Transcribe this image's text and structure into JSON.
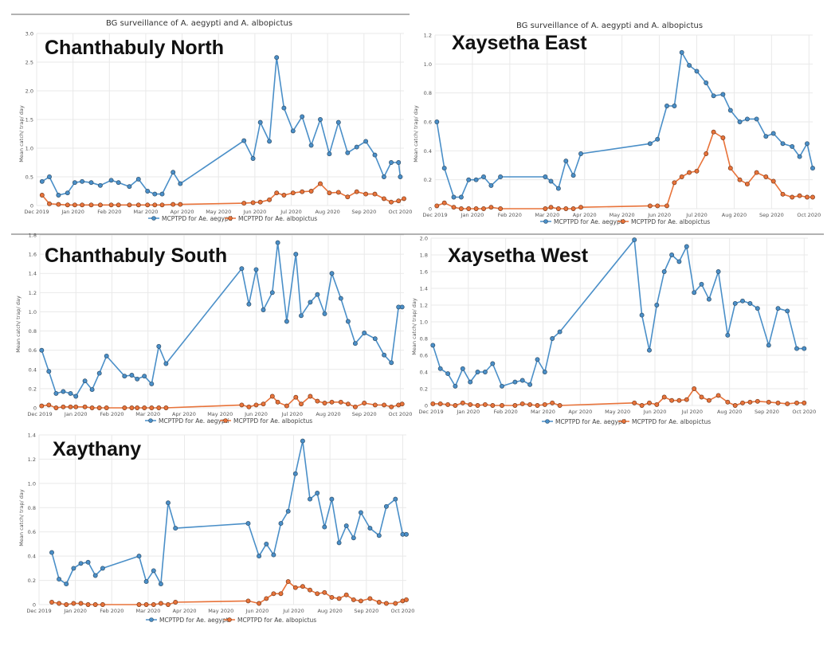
{
  "colors": {
    "aegypti": "#4a8fc8",
    "albopictus": "#e8733a",
    "grid": "#e9e9e9"
  },
  "legend": [
    "MCPTPD for Ae. aegypti",
    "MCPTPD for Ae. albopictus"
  ],
  "chart_data": [
    {
      "type": "line",
      "region": "Chanthabuly North",
      "title": "BG surveillance of A. aegypti and A. albopictus",
      "ylabel": "Mean catch/ trap/ day",
      "ylim": [
        0,
        3.0
      ],
      "yticks": [
        0,
        0.5,
        1.0,
        1.5,
        2.0,
        2.5,
        3.0
      ],
      "yticklabels": [
        "0",
        "0.5",
        "1.0",
        "1.5",
        "2.0",
        "2.5",
        "3.0"
      ],
      "xlim": [
        0,
        10.1
      ],
      "xticklabels": [
        "Dec 2019",
        "Jan 2020",
        "Feb 2020",
        "Mar 2020",
        "Apr 2020",
        "May 2020",
        "Jun 2020",
        "Jul 2020",
        "Aug 2020",
        "Sep 2020",
        "Oct 2020"
      ],
      "grid": true,
      "legend_position": "bottom",
      "series": [
        {
          "name": "MCPTPD for Ae. aegypti",
          "x": [
            0.15,
            0.35,
            0.6,
            0.85,
            1.05,
            1.25,
            1.5,
            1.75,
            2.05,
            2.25,
            2.55,
            2.8,
            3.05,
            3.25,
            3.45,
            3.75,
            3.95,
            5.7,
            5.95,
            6.15,
            6.4,
            6.6,
            6.8,
            7.05,
            7.3,
            7.55,
            7.8,
            8.05,
            8.3,
            8.55,
            8.8,
            9.05,
            9.3,
            9.55,
            9.75,
            9.95,
            10.0
          ],
          "y": [
            0.42,
            0.5,
            0.18,
            0.22,
            0.4,
            0.42,
            0.4,
            0.35,
            0.44,
            0.4,
            0.33,
            0.46,
            0.25,
            0.2,
            0.2,
            0.58,
            0.38,
            1.13,
            0.82,
            1.45,
            1.12,
            2.58,
            1.7,
            1.3,
            1.55,
            1.05,
            1.5,
            0.9,
            1.45,
            0.92,
            1.02,
            1.12,
            0.88,
            0.5,
            0.75,
            0.75,
            0.5
          ]
        },
        {
          "name": "MCPTPD for Ae. albopictus",
          "x": [
            0.15,
            0.35,
            0.6,
            0.85,
            1.05,
            1.25,
            1.5,
            1.75,
            2.05,
            2.25,
            2.55,
            2.8,
            3.05,
            3.25,
            3.45,
            3.75,
            3.95,
            5.7,
            5.95,
            6.15,
            6.4,
            6.6,
            6.8,
            7.05,
            7.3,
            7.55,
            7.8,
            8.05,
            8.3,
            8.55,
            8.8,
            9.05,
            9.3,
            9.55,
            9.75,
            9.95,
            10.1
          ],
          "y": [
            0.18,
            0.03,
            0.02,
            0.01,
            0.01,
            0.01,
            0.01,
            0.01,
            0.01,
            0.01,
            0.01,
            0.01,
            0.01,
            0.01,
            0.01,
            0.02,
            0.02,
            0.04,
            0.05,
            0.06,
            0.1,
            0.22,
            0.18,
            0.22,
            0.24,
            0.25,
            0.38,
            0.22,
            0.23,
            0.15,
            0.24,
            0.2,
            0.2,
            0.12,
            0.06,
            0.08,
            0.12
          ]
        }
      ]
    },
    {
      "type": "line",
      "region": "Xaysetha East",
      "title": "BG surveillance of A. aegypti and A. albopictus",
      "ylabel": "Mean catch/ trap/ day",
      "ylim": [
        0,
        1.2
      ],
      "yticks": [
        0,
        0.2,
        0.4,
        0.6,
        0.8,
        1.0,
        1.2
      ],
      "yticklabels": [
        "0",
        "0.2",
        "0.4",
        "0.6",
        "0.8",
        "1.0",
        "1.2"
      ],
      "xlim": [
        0,
        10.1
      ],
      "xticklabels": [
        "Dec 2019",
        "Jan 2020",
        "Feb 2020",
        "Mar 2020",
        "Apr 2020",
        "May 2020",
        "Jun 2020",
        "Jul 2020",
        "Aug 2020",
        "Sep 2020",
        "Oct 2020"
      ],
      "grid": true,
      "legend_position": "bottom",
      "series": [
        {
          "name": "MCPTPD for Ae. aegypti",
          "x": [
            0.05,
            0.25,
            0.5,
            0.7,
            0.9,
            1.1,
            1.3,
            1.5,
            1.75,
            2.95,
            3.1,
            3.3,
            3.5,
            3.7,
            3.9,
            5.75,
            5.95,
            6.2,
            6.4,
            6.6,
            6.8,
            7.0,
            7.25,
            7.45,
            7.7,
            7.9,
            8.15,
            8.35,
            8.6,
            8.85,
            9.05,
            9.3,
            9.55,
            9.75,
            9.95,
            10.1
          ],
          "y": [
            0.6,
            0.28,
            0.08,
            0.08,
            0.2,
            0.2,
            0.22,
            0.16,
            0.22,
            0.22,
            0.19,
            0.14,
            0.33,
            0.23,
            0.38,
            0.45,
            0.48,
            0.71,
            0.71,
            1.08,
            0.99,
            0.95,
            0.87,
            0.78,
            0.79,
            0.68,
            0.6,
            0.62,
            0.62,
            0.5,
            0.52,
            0.45,
            0.43,
            0.36,
            0.45,
            0.28
          ]
        },
        {
          "name": "MCPTPD for Ae. albopictus",
          "x": [
            0.05,
            0.25,
            0.5,
            0.7,
            0.9,
            1.1,
            1.3,
            1.5,
            1.75,
            2.95,
            3.1,
            3.3,
            3.5,
            3.7,
            3.9,
            5.75,
            5.95,
            6.2,
            6.4,
            6.6,
            6.8,
            7.0,
            7.25,
            7.45,
            7.7,
            7.9,
            8.15,
            8.35,
            8.6,
            8.85,
            9.05,
            9.3,
            9.55,
            9.75,
            9.95,
            10.1
          ],
          "y": [
            0.02,
            0.04,
            0.01,
            0.0,
            0.0,
            0.0,
            0.0,
            0.01,
            0.0,
            0.0,
            0.01,
            0.0,
            0.0,
            0.0,
            0.01,
            0.02,
            0.02,
            0.02,
            0.18,
            0.22,
            0.25,
            0.26,
            0.38,
            0.53,
            0.49,
            0.28,
            0.2,
            0.17,
            0.25,
            0.22,
            0.19,
            0.1,
            0.08,
            0.09,
            0.08,
            0.08
          ]
        }
      ]
    },
    {
      "type": "line",
      "region": "Chanthabuly South",
      "title": "",
      "ylabel": "Mean catch/ trap/ day",
      "ylim": [
        0,
        1.8
      ],
      "yticks": [
        0,
        0.2,
        0.4,
        0.6,
        0.8,
        1.0,
        1.2,
        1.4,
        1.6,
        1.8
      ],
      "yticklabels": [
        "0",
        "0.2",
        "0.4",
        "0.6",
        "0.8",
        "1.0",
        "1.2",
        "1.4",
        "1.6",
        "1.8"
      ],
      "xlim": [
        0,
        10.1
      ],
      "xticklabels": [
        "Dec 2019",
        "Jan 2020",
        "Feb 2020",
        "Mar 2020",
        "Apr 2020",
        "May 2020",
        "Jun 2020",
        "Jul 2020",
        "Aug 2020",
        "Sep 2020",
        "Oct 2020"
      ],
      "grid": true,
      "legend_position": "bottom",
      "series": [
        {
          "name": "MCPTPD for Ae. aegypti",
          "x": [
            0.05,
            0.25,
            0.45,
            0.65,
            0.85,
            1.0,
            1.25,
            1.45,
            1.65,
            1.85,
            2.35,
            2.55,
            2.7,
            2.9,
            3.1,
            3.3,
            3.5,
            5.6,
            5.8,
            6.0,
            6.2,
            6.45,
            6.6,
            6.85,
            7.1,
            7.25,
            7.5,
            7.7,
            7.9,
            8.1,
            8.35,
            8.55,
            8.75,
            9.0,
            9.3,
            9.55,
            9.75,
            9.95,
            10.05
          ],
          "y": [
            0.6,
            0.38,
            0.15,
            0.17,
            0.15,
            0.12,
            0.28,
            0.19,
            0.36,
            0.54,
            0.33,
            0.34,
            0.3,
            0.33,
            0.25,
            0.64,
            0.46,
            1.45,
            1.08,
            1.44,
            1.02,
            1.2,
            1.72,
            0.9,
            1.6,
            0.96,
            1.1,
            1.18,
            0.98,
            1.4,
            1.14,
            0.9,
            0.67,
            0.78,
            0.72,
            0.55,
            0.47,
            1.05,
            1.05
          ]
        },
        {
          "name": "MCPTPD for Ae. albopictus",
          "x": [
            0.05,
            0.25,
            0.45,
            0.65,
            0.85,
            1.0,
            1.25,
            1.45,
            1.65,
            1.85,
            2.35,
            2.55,
            2.7,
            2.9,
            3.1,
            3.3,
            3.5,
            5.6,
            5.8,
            6.0,
            6.2,
            6.45,
            6.6,
            6.85,
            7.1,
            7.25,
            7.5,
            7.7,
            7.9,
            8.1,
            8.35,
            8.55,
            8.75,
            9.0,
            9.3,
            9.55,
            9.75,
            9.95,
            10.05
          ],
          "y": [
            0.02,
            0.03,
            0.0,
            0.01,
            0.01,
            0.01,
            0.01,
            0.0,
            0.0,
            0.0,
            0.0,
            0.0,
            0.0,
            0.0,
            0.0,
            0.0,
            0.0,
            0.03,
            0.01,
            0.03,
            0.04,
            0.12,
            0.06,
            0.02,
            0.11,
            0.04,
            0.12,
            0.07,
            0.05,
            0.06,
            0.06,
            0.04,
            0.01,
            0.05,
            0.03,
            0.03,
            0.01,
            0.03,
            0.04
          ]
        }
      ]
    },
    {
      "type": "line",
      "region": "Xaysetha West",
      "title": "",
      "ylabel": "Mean catch/ trap/ day",
      "ylim": [
        0,
        2.0
      ],
      "yticks": [
        0,
        0.2,
        0.4,
        0.6,
        0.8,
        1.0,
        1.2,
        1.4,
        1.6,
        1.8,
        2.0
      ],
      "yticklabels": [
        "0",
        "0.2",
        "0.4",
        "0.6",
        "0.8",
        "1.0",
        "1.2",
        "1.4",
        "1.6",
        "1.8",
        "2.0"
      ],
      "xlim": [
        0,
        10.1
      ],
      "xticklabels": [
        "Dec 2019",
        "Jan 2020",
        "Feb 2020",
        "Mar 2020",
        "Apr 2020",
        "May 2020",
        "Jun 2020",
        "Jul 2020",
        "Aug 2020",
        "Sep 2020",
        "Oct 2020"
      ],
      "grid": true,
      "legend_position": "bottom",
      "series": [
        {
          "name": "MCPTPD for Ae. aegypti",
          "x": [
            0.05,
            0.25,
            0.45,
            0.65,
            0.85,
            1.05,
            1.25,
            1.45,
            1.65,
            1.9,
            2.25,
            2.45,
            2.65,
            2.85,
            3.05,
            3.25,
            3.45,
            5.45,
            5.65,
            5.85,
            6.05,
            6.25,
            6.45,
            6.65,
            6.85,
            7.05,
            7.25,
            7.45,
            7.7,
            7.95,
            8.15,
            8.35,
            8.55,
            8.75,
            9.05,
            9.3,
            9.55,
            9.8,
            10.0
          ],
          "y": [
            0.72,
            0.44,
            0.38,
            0.23,
            0.44,
            0.28,
            0.4,
            0.4,
            0.5,
            0.23,
            0.28,
            0.3,
            0.25,
            0.55,
            0.4,
            0.8,
            0.88,
            1.98,
            1.08,
            0.66,
            1.2,
            1.6,
            1.8,
            1.72,
            1.9,
            1.35,
            1.45,
            1.27,
            1.6,
            0.84,
            1.22,
            1.25,
            1.22,
            1.16,
            0.72,
            1.16,
            1.13,
            0.68,
            0.68
          ]
        },
        {
          "name": "MCPTPD for Ae. albopictus",
          "x": [
            0.05,
            0.25,
            0.45,
            0.65,
            0.85,
            1.05,
            1.25,
            1.45,
            1.65,
            1.9,
            2.25,
            2.45,
            2.65,
            2.85,
            3.05,
            3.25,
            3.45,
            5.45,
            5.65,
            5.85,
            6.05,
            6.25,
            6.45,
            6.65,
            6.85,
            7.05,
            7.25,
            7.45,
            7.7,
            7.95,
            8.15,
            8.35,
            8.55,
            8.75,
            9.05,
            9.3,
            9.55,
            9.8,
            10.0
          ],
          "y": [
            0.02,
            0.02,
            0.01,
            0.0,
            0.03,
            0.01,
            0.0,
            0.01,
            0.0,
            0.0,
            0.0,
            0.02,
            0.01,
            0.0,
            0.01,
            0.03,
            0.0,
            0.03,
            0.0,
            0.03,
            0.01,
            0.1,
            0.06,
            0.06,
            0.07,
            0.2,
            0.1,
            0.06,
            0.12,
            0.04,
            0.0,
            0.03,
            0.04,
            0.05,
            0.04,
            0.03,
            0.02,
            0.03,
            0.03
          ]
        }
      ]
    },
    {
      "type": "line",
      "region": "Xaythany",
      "title": "",
      "ylabel": "Mean catch/ trap/ day",
      "ylim": [
        0,
        1.4
      ],
      "yticks": [
        0,
        0.2,
        0.4,
        0.6,
        0.8,
        1.0,
        1.2,
        1.4
      ],
      "yticklabels": [
        "0",
        "0.2",
        "0.4",
        "0.6",
        "0.8",
        "1.0",
        "1.2",
        "1.4"
      ],
      "xlim": [
        0,
        10.1
      ],
      "xticklabels": [
        "Dec 2019",
        "Jan 2020",
        "Feb 2020",
        "Mar 2020",
        "Apr 2020",
        "May 2020",
        "Jun 2020",
        "Jul 2020",
        "Aug 2020",
        "Sep 2020",
        "Oct 2020"
      ],
      "grid": true,
      "legend_position": "bottom",
      "series": [
        {
          "name": "MCPTPD for Ae. aegypti",
          "x": [
            0.35,
            0.55,
            0.75,
            0.95,
            1.15,
            1.35,
            1.55,
            1.75,
            2.75,
            2.95,
            3.15,
            3.35,
            3.55,
            3.75,
            5.75,
            6.05,
            6.25,
            6.45,
            6.65,
            6.85,
            7.05,
            7.25,
            7.45,
            7.65,
            7.85,
            8.05,
            8.25,
            8.45,
            8.65,
            8.85,
            9.1,
            9.35,
            9.55,
            9.8,
            10.0,
            10.1
          ],
          "y": [
            0.43,
            0.21,
            0.17,
            0.3,
            0.34,
            0.35,
            0.24,
            0.3,
            0.4,
            0.19,
            0.28,
            0.17,
            0.84,
            0.63,
            0.67,
            0.4,
            0.5,
            0.41,
            0.67,
            0.77,
            1.08,
            1.35,
            0.87,
            0.92,
            0.64,
            0.87,
            0.51,
            0.65,
            0.55,
            0.76,
            0.63,
            0.57,
            0.81,
            0.87,
            0.58,
            0.58
          ]
        },
        {
          "name": "MCPTPD for Ae. albopictus",
          "x": [
            0.35,
            0.55,
            0.75,
            0.95,
            1.15,
            1.35,
            1.55,
            1.75,
            2.75,
            2.95,
            3.15,
            3.35,
            3.55,
            3.75,
            5.75,
            6.05,
            6.25,
            6.45,
            6.65,
            6.85,
            7.05,
            7.25,
            7.45,
            7.65,
            7.85,
            8.05,
            8.25,
            8.45,
            8.65,
            8.85,
            9.1,
            9.35,
            9.55,
            9.8,
            10.0,
            10.1
          ],
          "y": [
            0.02,
            0.01,
            0.0,
            0.01,
            0.01,
            0.0,
            0.0,
            0.0,
            0.0,
            0.0,
            0.0,
            0.01,
            0.0,
            0.02,
            0.03,
            0.01,
            0.05,
            0.09,
            0.09,
            0.19,
            0.14,
            0.15,
            0.12,
            0.09,
            0.1,
            0.06,
            0.05,
            0.08,
            0.04,
            0.03,
            0.05,
            0.02,
            0.01,
            0.01,
            0.03,
            0.04
          ]
        }
      ]
    }
  ]
}
